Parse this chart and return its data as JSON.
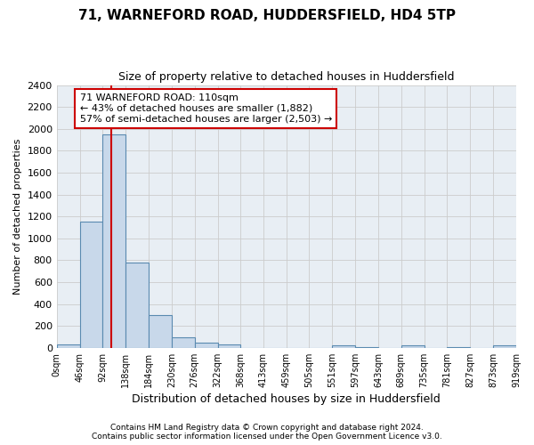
{
  "title": "71, WARNEFORD ROAD, HUDDERSFIELD, HD4 5TP",
  "subtitle": "Size of property relative to detached houses in Huddersfield",
  "xlabel": "Distribution of detached houses by size in Huddersfield",
  "ylabel": "Number of detached properties",
  "footer_line1": "Contains HM Land Registry data © Crown copyright and database right 2024.",
  "footer_line2": "Contains public sector information licensed under the Open Government Licence v3.0.",
  "annotation_title": "71 WARNEFORD ROAD: 110sqm",
  "annotation_line1": "← 43% of detached houses are smaller (1,882)",
  "annotation_line2": "57% of semi-detached houses are larger (2,503) →",
  "property_size": 110,
  "bar_edges": [
    0,
    46,
    92,
    138,
    184,
    230,
    276,
    322,
    368,
    413,
    459,
    505,
    551,
    597,
    643,
    689,
    735,
    781,
    827,
    873,
    919
  ],
  "bar_heights": [
    30,
    1150,
    1950,
    780,
    300,
    100,
    50,
    30,
    0,
    0,
    0,
    0,
    20,
    5,
    0,
    20,
    0,
    10,
    0,
    20
  ],
  "bar_color": "#c8d8ea",
  "bar_edge_color": "#5a8ab0",
  "red_line_color": "#cc0000",
  "ylim": [
    0,
    2400
  ],
  "yticks": [
    0,
    200,
    400,
    600,
    800,
    1000,
    1200,
    1400,
    1600,
    1800,
    2000,
    2200,
    2400
  ],
  "annotation_box_color": "#cc0000",
  "grid_color": "#cccccc",
  "background_color": "#e8eef4"
}
